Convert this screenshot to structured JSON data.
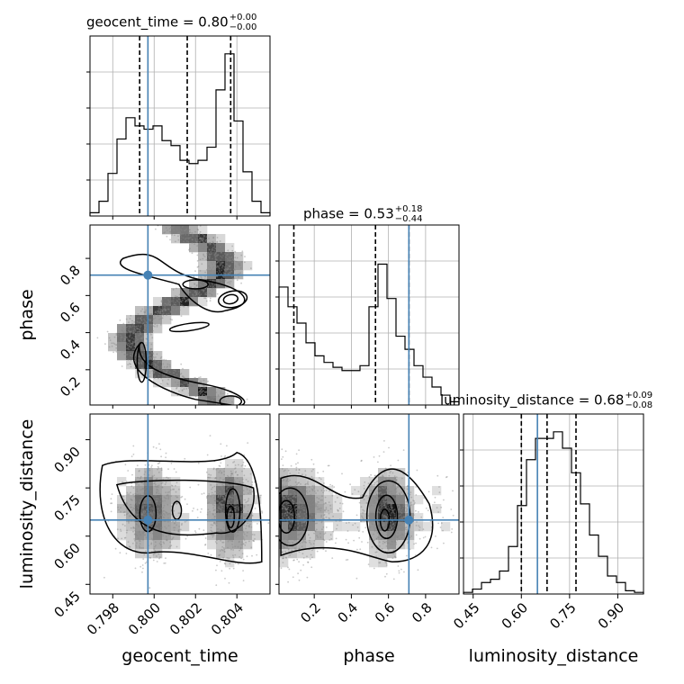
{
  "chart_data": {
    "type": "corner",
    "parameters": [
      "geocent_time",
      "phase",
      "luminosity_distance"
    ],
    "axis_labels": {
      "geocent_time": "geocent_time",
      "phase": "phase",
      "luminosity_distance": "luminosity_distance"
    },
    "ranges": {
      "geocent_time": [
        0.7969,
        0.8056
      ],
      "phase": [
        0.01,
        0.98
      ],
      "luminosity_distance": [
        0.42,
        0.98
      ]
    },
    "ticks": {
      "geocent_time": {
        "values": [
          0.798,
          0.8,
          0.802,
          0.804
        ],
        "labels": [
          "0.798",
          "0.800",
          "0.802",
          "0.804"
        ]
      },
      "phase": {
        "values": [
          0.2,
          0.4,
          0.6,
          0.8
        ],
        "labels": [
          "0.2",
          "0.4",
          "0.6",
          "0.8"
        ]
      },
      "luminosity_distance": {
        "values": [
          0.45,
          0.6,
          0.75,
          0.9
        ],
        "labels": [
          "0.45",
          "0.60",
          "0.75",
          "0.90"
        ]
      }
    },
    "titles": {
      "geocent_time": {
        "name": "geocent_time",
        "median": "0.80",
        "upper": "+0.00",
        "lower": "−0.00"
      },
      "phase": {
        "name": "phase",
        "median": "0.53",
        "upper": "+0.18",
        "lower": "−0.44"
      },
      "luminosity_distance": {
        "name": "luminosity_distance",
        "median": "0.68",
        "upper": "+0.09",
        "lower": "−0.08"
      }
    },
    "title_equals": " = ",
    "injection": {
      "geocent_time": 0.7997,
      "phase": 0.71,
      "luminosity_distance": 0.65
    },
    "injection_color": "#4682b4",
    "quantiles": {
      "geocent_time": [
        0.7993,
        0.8016,
        0.8037
      ],
      "phase": [
        0.09,
        0.53,
        0.71
      ],
      "luminosity_distance": [
        0.6,
        0.68,
        0.77
      ]
    },
    "histograms": {
      "geocent_time": {
        "bin_start": 0.7969,
        "bin_width": 0.000435,
        "counts": [
          0.02,
          0.09,
          0.26,
          0.47,
          0.6,
          0.55,
          0.53,
          0.55,
          0.46,
          0.43,
          0.34,
          0.32,
          0.34,
          0.42,
          0.77,
          0.99,
          0.58,
          0.27,
          0.09,
          0.02
        ]
      },
      "phase": {
        "bin_start": 0.01,
        "bin_width": 0.0485,
        "counts": [
          0.72,
          0.6,
          0.5,
          0.38,
          0.3,
          0.26,
          0.23,
          0.21,
          0.21,
          0.24,
          0.6,
          0.86,
          0.65,
          0.42,
          0.34,
          0.24,
          0.17,
          0.11,
          0.06,
          0.02
        ]
      },
      "luminosity_distance": {
        "bin_start": 0.42,
        "bin_width": 0.028,
        "counts": [
          0.01,
          0.03,
          0.07,
          0.09,
          0.14,
          0.29,
          0.54,
          0.82,
          0.95,
          0.95,
          0.99,
          0.89,
          0.74,
          0.55,
          0.36,
          0.23,
          0.11,
          0.07,
          0.02,
          0.01
        ]
      }
    },
    "grid": true
  }
}
